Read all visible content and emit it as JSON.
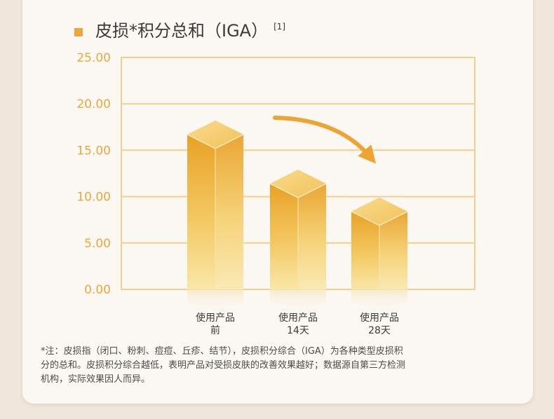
{
  "header": {
    "title": "皮损*积分总和（IGA）",
    "reference": "[1]"
  },
  "chart_data": {
    "type": "bar",
    "categories": [
      [
        "使用产品",
        "前"
      ],
      [
        "使用产品",
        "14天"
      ],
      [
        "使用产品",
        "28天"
      ]
    ],
    "values": [
      16.7,
      11.4,
      8.4
    ],
    "ylim": [
      0,
      25
    ],
    "yticks": [
      "0.00",
      "5.00",
      "10.00",
      "15.00",
      "20.00",
      "25.00"
    ],
    "grid": true,
    "colors": {
      "axis_text": "#e9a83b",
      "grid": "#f2cf8a",
      "bar_top": "#eaa42a",
      "bar_bottom": "#f8e29a",
      "arrow": "#eea432"
    }
  },
  "footnote": {
    "lines": [
      "*注：皮损指（闭口、粉刺、痘痘、丘疹、结节），皮损积分综合（IGA）为各种类型皮损积",
      "分的总和。皮损积分综合越低，表明产品对受损皮肤的改善效果越好；数据源自第三方检测",
      "机构，实际效果因人而异。"
    ]
  }
}
